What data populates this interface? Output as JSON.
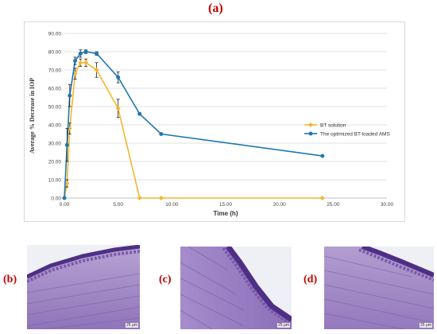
{
  "figure": {
    "panel_a_label": "(a)",
    "panel_b_label": "(b)",
    "panel_c_label": "(c)",
    "panel_d_label": "(d)",
    "scale_bar_text": "25 μm"
  },
  "colors": {
    "bt_solution": "#f5b52e",
    "optimized_ams": "#1f77b4",
    "label_red": "#c00000",
    "tissue_base": "#a993c8",
    "tissue_dark": "#6b4f9e"
  },
  "chart_data": {
    "type": "line",
    "xlabel": "Time (h)",
    "ylabel": "Average % Decrease in IOP",
    "xlim": [
      0,
      30
    ],
    "ylim": [
      0,
      90
    ],
    "x_ticks": [
      "0.00",
      "5.00",
      "10.00",
      "15.00",
      "20.00",
      "25.00",
      "30.00"
    ],
    "y_ticks": [
      "0.00",
      "10.00",
      "20.00",
      "30.00",
      "40.00",
      "50.00",
      "60.00",
      "70.00",
      "80.00",
      "90.00"
    ],
    "grid": "horizontal",
    "legend_position": "right",
    "series": [
      {
        "name": "BT solution",
        "color": "#f5b52e",
        "x": [
          0,
          0.25,
          0.5,
          1,
          1.5,
          2,
          3,
          5,
          7,
          9,
          24
        ],
        "y": [
          0,
          8,
          38,
          68,
          74,
          74,
          70,
          49,
          0,
          0,
          0
        ],
        "err": [
          0,
          2,
          3,
          3,
          2,
          2,
          4,
          5,
          0,
          0,
          0
        ]
      },
      {
        "name": "The optimized BT-loaded AMS",
        "color": "#1f77b4",
        "x": [
          0,
          0.25,
          0.5,
          1,
          1.5,
          2,
          3,
          5,
          7,
          9,
          24
        ],
        "y": [
          0,
          29,
          56,
          75,
          79,
          80,
          79,
          66,
          46,
          35,
          23
        ],
        "err": [
          0,
          9,
          6,
          2,
          2,
          1,
          1,
          3,
          0,
          0,
          0
        ]
      }
    ]
  }
}
